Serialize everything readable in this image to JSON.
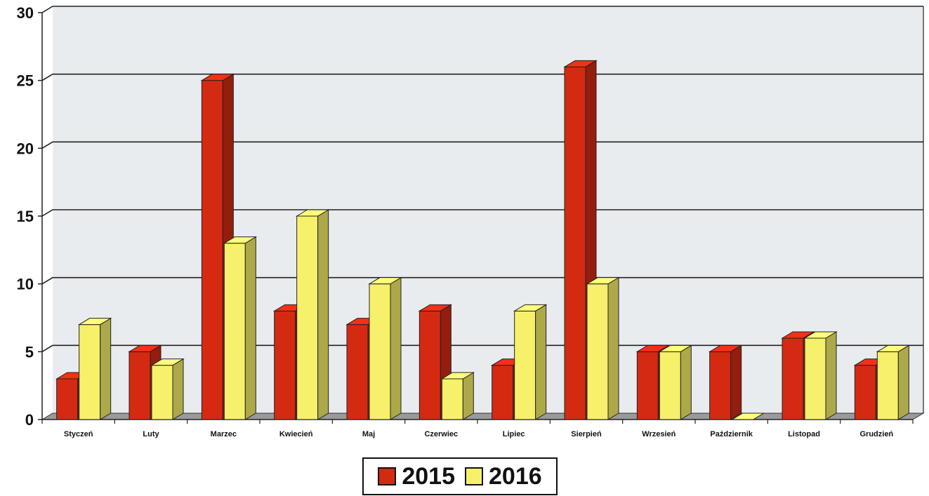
{
  "chart_data": {
    "type": "bar",
    "categories": [
      "Styczeń",
      "Luty",
      "Marzec",
      "Kwiecień",
      "Maj",
      "Czerwiec",
      "Lipiec",
      "Sierpień",
      "Wrzesień",
      "Październik",
      "Listopad",
      "Grudzień"
    ],
    "series": [
      {
        "name": "2015",
        "color": "#d42a12",
        "values": [
          3,
          5,
          25,
          8,
          7,
          8,
          4,
          26,
          5,
          5,
          6,
          4
        ]
      },
      {
        "name": "2016",
        "color": "#f7f06a",
        "values": [
          7,
          4,
          13,
          15,
          10,
          3,
          8,
          10,
          5,
          0,
          6,
          5
        ]
      }
    ],
    "ylim": [
      0,
      30
    ],
    "yticks": [
      "0",
      "5",
      "10",
      "15",
      "20",
      "25",
      "30"
    ],
    "grid": true,
    "legend_position": "bottom",
    "style": "3d-bar",
    "plot_background": "#e9ecef"
  }
}
